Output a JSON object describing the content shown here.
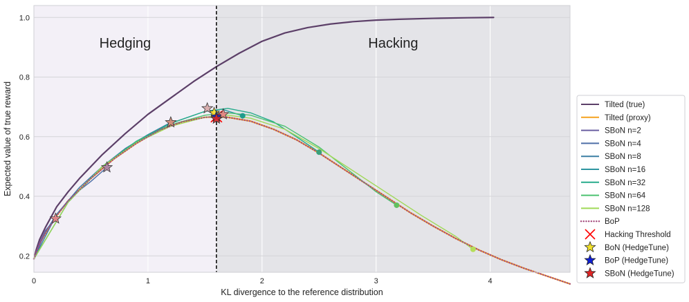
{
  "chart_data": {
    "type": "line",
    "xlabel": "KL divergence to the reference distribution",
    "ylabel": "Expected value of true reward",
    "xlim": [
      0,
      4.7
    ],
    "ylim": [
      0.145,
      1.04
    ],
    "xticks": [
      0,
      1,
      2,
      3,
      4
    ],
    "yticks": [
      0.2,
      0.4,
      0.6,
      0.8,
      1.0
    ],
    "grid": true,
    "legend_position": "right",
    "threshold_x": 1.6,
    "regions": [
      {
        "label": "Hedging",
        "x_range": [
          0,
          1.6
        ],
        "color": "#f3f0f7",
        "label_x": 0.8,
        "label_y": 0.915
      },
      {
        "label": "Hacking",
        "x_range": [
          1.6,
          4.7
        ],
        "color": "#e4e4e8",
        "label_x": 3.15,
        "label_y": 0.915
      }
    ],
    "series": [
      {
        "name": "Tilted (true)",
        "color": "#5c3f68",
        "style": "solid",
        "width": 2.2,
        "points": [
          [
            0,
            0.19
          ],
          [
            0.02,
            0.22
          ],
          [
            0.05,
            0.255
          ],
          [
            0.1,
            0.295
          ],
          [
            0.2,
            0.365
          ],
          [
            0.3,
            0.415
          ],
          [
            0.4,
            0.46
          ],
          [
            0.5,
            0.5
          ],
          [
            0.6,
            0.54
          ],
          [
            0.8,
            0.61
          ],
          [
            1.0,
            0.675
          ],
          [
            1.2,
            0.73
          ],
          [
            1.4,
            0.785
          ],
          [
            1.6,
            0.835
          ],
          [
            1.8,
            0.88
          ],
          [
            2.0,
            0.92
          ],
          [
            2.2,
            0.948
          ],
          [
            2.4,
            0.966
          ],
          [
            2.6,
            0.978
          ],
          [
            2.8,
            0.986
          ],
          [
            3.0,
            0.991
          ],
          [
            3.2,
            0.994
          ],
          [
            3.5,
            0.997
          ],
          [
            3.8,
            0.999
          ],
          [
            4.03,
            1.0
          ]
        ]
      },
      {
        "name": "Tilted (proxy)",
        "color": "#f5a21e",
        "style": "solid",
        "width": 2.2,
        "points": [
          [
            0,
            0.19
          ],
          [
            0.05,
            0.24
          ],
          [
            0.1,
            0.275
          ],
          [
            0.2,
            0.335
          ],
          [
            0.3,
            0.385
          ],
          [
            0.5,
            0.46
          ],
          [
            0.7,
            0.525
          ],
          [
            0.9,
            0.578
          ],
          [
            1.1,
            0.622
          ],
          [
            1.3,
            0.65
          ],
          [
            1.5,
            0.665
          ],
          [
            1.6,
            0.667
          ],
          [
            1.7,
            0.665
          ],
          [
            1.9,
            0.652
          ],
          [
            2.1,
            0.625
          ],
          [
            2.3,
            0.59
          ],
          [
            2.5,
            0.545
          ],
          [
            2.7,
            0.495
          ],
          [
            2.9,
            0.445
          ],
          [
            3.1,
            0.395
          ],
          [
            3.3,
            0.345
          ],
          [
            3.5,
            0.3
          ],
          [
            3.7,
            0.258
          ],
          [
            3.9,
            0.22
          ],
          [
            4.1,
            0.187
          ],
          [
            4.3,
            0.158
          ],
          [
            4.5,
            0.132
          ],
          [
            4.7,
            0.106
          ]
        ]
      },
      {
        "name": "SBoN n=2",
        "color": "#6a5fa1",
        "style": "solid",
        "width": 1.4,
        "points": [
          [
            0,
            0.19
          ],
          [
            0.05,
            0.245
          ],
          [
            0.1,
            0.285
          ],
          [
            0.19,
            0.325
          ]
        ]
      },
      {
        "name": "SBoN n=4",
        "color": "#4d6ea6",
        "style": "solid",
        "width": 1.4,
        "points": [
          [
            0,
            0.19
          ],
          [
            0.1,
            0.28
          ],
          [
            0.2,
            0.34
          ],
          [
            0.35,
            0.405
          ],
          [
            0.5,
            0.45
          ],
          [
            0.64,
            0.497
          ]
        ]
      },
      {
        "name": "SBoN n=8",
        "color": "#3a7ea4",
        "style": "solid",
        "width": 1.4,
        "points": [
          [
            0,
            0.19
          ],
          [
            0.2,
            0.34
          ],
          [
            0.4,
            0.43
          ],
          [
            0.6,
            0.5
          ],
          [
            0.8,
            0.56
          ],
          [
            1.0,
            0.607
          ],
          [
            1.2,
            0.648
          ]
        ]
      },
      {
        "name": "SBoN n=16",
        "color": "#2e95a0",
        "style": "solid",
        "width": 1.4,
        "points": [
          [
            0,
            0.19
          ],
          [
            0.3,
            0.38
          ],
          [
            0.6,
            0.5
          ],
          [
            0.9,
            0.585
          ],
          [
            1.2,
            0.645
          ],
          [
            1.5,
            0.685
          ],
          [
            1.65,
            0.692
          ],
          [
            1.83,
            0.67
          ]
        ]
      },
      {
        "name": "SBoN n=32",
        "color": "#26ab8b",
        "style": "solid",
        "width": 1.4,
        "points": [
          [
            0,
            0.19
          ],
          [
            0.3,
            0.38
          ],
          [
            0.6,
            0.5
          ],
          [
            0.9,
            0.585
          ],
          [
            1.2,
            0.645
          ],
          [
            1.5,
            0.685
          ],
          [
            1.7,
            0.695
          ],
          [
            1.9,
            0.68
          ],
          [
            2.1,
            0.65
          ],
          [
            2.3,
            0.6
          ],
          [
            2.5,
            0.548
          ]
        ]
      },
      {
        "name": "SBoN n=64",
        "color": "#4cc270",
        "style": "solid",
        "width": 1.4,
        "points": [
          [
            0,
            0.19
          ],
          [
            0.3,
            0.38
          ],
          [
            0.6,
            0.5
          ],
          [
            0.9,
            0.583
          ],
          [
            1.2,
            0.64
          ],
          [
            1.5,
            0.672
          ],
          [
            1.7,
            0.68
          ],
          [
            1.9,
            0.672
          ],
          [
            2.2,
            0.635
          ],
          [
            2.5,
            0.565
          ],
          [
            2.8,
            0.475
          ],
          [
            3.0,
            0.415
          ],
          [
            3.18,
            0.37
          ]
        ]
      },
      {
        "name": "SBoN n=128",
        "color": "#9fd957",
        "style": "solid",
        "width": 1.4,
        "points": [
          [
            0,
            0.19
          ],
          [
            0.3,
            0.38
          ],
          [
            0.6,
            0.5
          ],
          [
            0.9,
            0.58
          ],
          [
            1.2,
            0.635
          ],
          [
            1.5,
            0.665
          ],
          [
            1.7,
            0.672
          ],
          [
            1.9,
            0.662
          ],
          [
            2.2,
            0.625
          ],
          [
            2.5,
            0.56
          ],
          [
            2.8,
            0.485
          ],
          [
            3.1,
            0.41
          ],
          [
            3.4,
            0.335
          ],
          [
            3.7,
            0.265
          ],
          [
            3.85,
            0.222
          ]
        ]
      },
      {
        "name": "BoP",
        "color": "#a54d7e",
        "style": "dotted",
        "width": 2.4,
        "points": [
          [
            0,
            0.19
          ],
          [
            0.05,
            0.24
          ],
          [
            0.1,
            0.275
          ],
          [
            0.2,
            0.335
          ],
          [
            0.3,
            0.385
          ],
          [
            0.5,
            0.46
          ],
          [
            0.7,
            0.525
          ],
          [
            0.9,
            0.578
          ],
          [
            1.1,
            0.622
          ],
          [
            1.3,
            0.65
          ],
          [
            1.5,
            0.665
          ],
          [
            1.6,
            0.667
          ],
          [
            1.7,
            0.665
          ],
          [
            1.9,
            0.652
          ],
          [
            2.1,
            0.625
          ],
          [
            2.3,
            0.59
          ],
          [
            2.5,
            0.545
          ],
          [
            2.7,
            0.495
          ],
          [
            2.9,
            0.445
          ],
          [
            3.1,
            0.395
          ],
          [
            3.3,
            0.345
          ],
          [
            3.5,
            0.3
          ],
          [
            3.7,
            0.258
          ],
          [
            3.9,
            0.22
          ],
          [
            4.1,
            0.187
          ],
          [
            4.3,
            0.158
          ],
          [
            4.5,
            0.132
          ],
          [
            4.7,
            0.106
          ]
        ]
      }
    ],
    "endpoints": [
      {
        "series": "SBoN n=2",
        "x": 0.19,
        "y": 0.325,
        "color": "#3a2046"
      },
      {
        "series": "SBoN n=4",
        "x": 0.64,
        "y": 0.497,
        "color": "#4d3b7d"
      },
      {
        "series": "SBoN n=8",
        "x": 1.2,
        "y": 0.648,
        "color": "#3a7ea4"
      },
      {
        "series": "SBoN n=16",
        "x": 1.83,
        "y": 0.67,
        "color": "#1f9c8c"
      },
      {
        "series": "SBoN n=32",
        "x": 2.5,
        "y": 0.548,
        "color": "#3aa07a"
      },
      {
        "series": "SBoN n=64",
        "x": 3.18,
        "y": 0.37,
        "color": "#62c060"
      },
      {
        "series": "SBoN n=128",
        "x": 3.85,
        "y": 0.222,
        "color": "#b5de5a"
      }
    ],
    "markers": [
      {
        "series": "Hacking Threshold",
        "shape": "x",
        "color": "#ff0000",
        "x": 1.6,
        "y": 0.667
      },
      {
        "series": "BoN (HedgeTune)",
        "shape": "star",
        "color": "#f2e12b",
        "x": 1.58,
        "y": 0.68
      },
      {
        "series": "BoP (HedgeTune)",
        "shape": "star",
        "color": "#0f1fd6",
        "x": 1.6,
        "y": 0.667
      },
      {
        "series": "SBoN (HedgeTune)",
        "shape": "star",
        "color": "#ef9090",
        "x": 0.19,
        "y": 0.325
      },
      {
        "series": "SBoN (HedgeTune)",
        "shape": "star",
        "color": "#b98fa8",
        "x": 0.64,
        "y": 0.497
      },
      {
        "series": "SBoN (HedgeTune)",
        "shape": "star",
        "color": "#e0907a",
        "x": 1.2,
        "y": 0.648
      },
      {
        "series": "SBoN (HedgeTune)",
        "shape": "star",
        "color": "#d6a6a6",
        "x": 1.52,
        "y": 0.695
      },
      {
        "series": "SBoN (HedgeTune)",
        "shape": "star",
        "color": "#e88080",
        "x": 1.66,
        "y": 0.675
      },
      {
        "series": "SBoN (HedgeTune)",
        "shape": "star",
        "color": "#e02525",
        "x": 1.6,
        "y": 0.66
      }
    ],
    "legend": [
      {
        "label": "Tilted (true)",
        "kind": "line",
        "color": "#5c3f68"
      },
      {
        "label": "Tilted (proxy)",
        "kind": "line",
        "color": "#f5a21e"
      },
      {
        "label": "SBoN n=2",
        "kind": "line",
        "color": "#6a5fa1"
      },
      {
        "label": "SBoN n=4",
        "kind": "line",
        "color": "#4d6ea6"
      },
      {
        "label": "SBoN n=8",
        "kind": "line",
        "color": "#3a7ea4"
      },
      {
        "label": "SBoN n=16",
        "kind": "line",
        "color": "#2e95a0"
      },
      {
        "label": "SBoN n=32",
        "kind": "line",
        "color": "#26ab8b"
      },
      {
        "label": "SBoN n=64",
        "kind": "line",
        "color": "#4cc270"
      },
      {
        "label": "SBoN n=128",
        "kind": "line",
        "color": "#9fd957"
      },
      {
        "label": "BoP",
        "kind": "dotted",
        "color": "#a54d7e"
      },
      {
        "label": "Hacking Threshold",
        "kind": "x",
        "color": "#ff0000"
      },
      {
        "label": "BoN (HedgeTune)",
        "kind": "star",
        "color": "#f2e12b"
      },
      {
        "label": "BoP (HedgeTune)",
        "kind": "star",
        "color": "#0f1fd6"
      },
      {
        "label": "SBoN (HedgeTune)",
        "kind": "star",
        "color": "#e02525"
      }
    ]
  }
}
